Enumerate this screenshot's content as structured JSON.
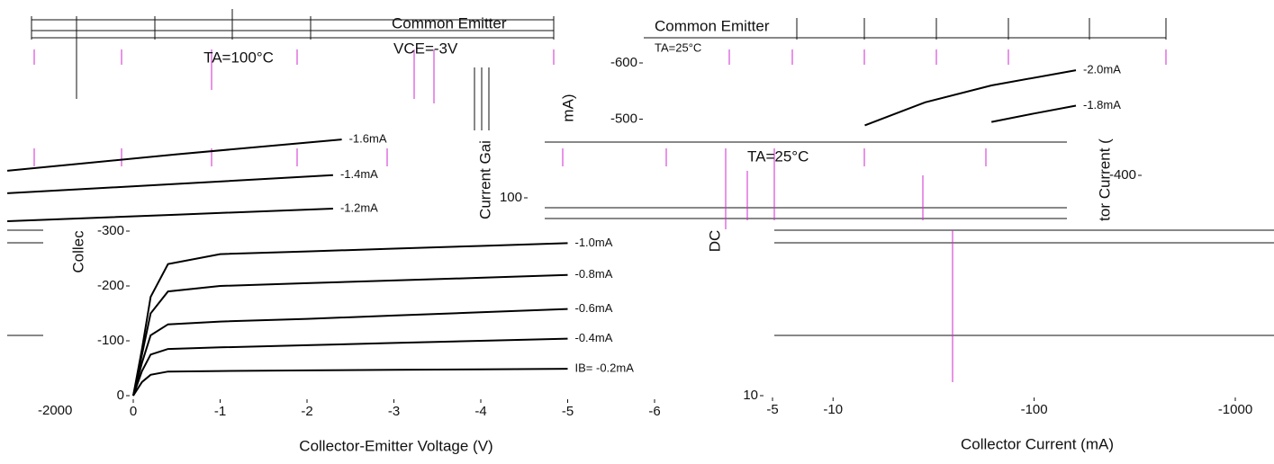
{
  "chart_data": [
    {
      "type": "line",
      "xlabel": "Collector-Emitter Voltage (V)",
      "ylabel": "Collec",
      "annotations": [
        "TA=100°C",
        "-2000"
      ],
      "xlim": [
        0,
        -6
      ],
      "ylim": [
        0,
        -300
      ],
      "xticks": [
        0,
        -1,
        -2,
        -3,
        -4,
        -5,
        -6
      ],
      "yticks": [
        0,
        -100,
        -200,
        -300
      ],
      "series": [
        {
          "name": "IB= -0.2mA",
          "color": "#000000",
          "x": [
            0,
            -0.1,
            -0.2,
            -0.4,
            -1,
            -2,
            -3,
            -4,
            -5
          ],
          "values": [
            0,
            -25,
            -38,
            -44,
            -45,
            -46,
            -47,
            -48,
            -49
          ]
        },
        {
          "name": "-0.4mA",
          "color": "#000000",
          "x": [
            0,
            -0.1,
            -0.2,
            -0.4,
            -1,
            -2,
            -3,
            -4,
            -5
          ],
          "values": [
            0,
            -45,
            -75,
            -85,
            -88,
            -92,
            -96,
            -100,
            -104
          ]
        },
        {
          "name": "-0.6mA",
          "color": "#000000",
          "x": [
            0,
            -0.1,
            -0.2,
            -0.4,
            -1,
            -2,
            -3,
            -4,
            -5
          ],
          "values": [
            0,
            -60,
            -110,
            -130,
            -135,
            -140,
            -146,
            -152,
            -158
          ]
        },
        {
          "name": "-0.8mA",
          "color": "#000000",
          "x": [
            0,
            -0.1,
            -0.2,
            -0.4,
            -1,
            -2,
            -3,
            -4,
            -5
          ],
          "values": [
            0,
            -75,
            -150,
            -190,
            -200,
            -205,
            -210,
            -215,
            -220
          ]
        },
        {
          "name": "-1.0mA",
          "color": "#000000",
          "x": [
            0,
            -0.1,
            -0.2,
            -0.4,
            -1,
            -2,
            -3,
            -4,
            -5
          ],
          "values": [
            0,
            -85,
            -180,
            -240,
            -258,
            -263,
            -268,
            -273,
            -278
          ]
        },
        {
          "name": "-1.2mA",
          "color": "#000000",
          "x": [
            1.45,
            -0.5,
            -2.3
          ],
          "values": [
            -318,
            -330,
            -341
          ]
        },
        {
          "name": "-1.4mA",
          "color": "#000000",
          "x": [
            1.45,
            -0.5,
            -2.3
          ],
          "values": [
            -369,
            -386,
            -402
          ]
        },
        {
          "name": "-1.6mA",
          "color": "#000000",
          "x": [
            1.45,
            -0.5,
            -2.4
          ],
          "values": [
            -410,
            -440,
            -467
          ]
        }
      ]
    },
    {
      "type": "line",
      "title": "Common Emitter",
      "annotations": [
        "TA=25°C"
      ],
      "ylabel": [
        "mA)",
        "tor Current ("
      ],
      "xlim": [
        0,
        -5
      ],
      "ylim": [
        -400,
        -600
      ],
      "yticks": [
        -600,
        -500,
        -400
      ],
      "series": [
        {
          "name": "-2.0mA",
          "color": "#000000",
          "x": [
            -1.5,
            -2.5,
            -3.6,
            -5
          ],
          "values": [
            -489,
            -530,
            -560,
            -587
          ]
        },
        {
          "name": "-1.8mA",
          "color": "#000000",
          "x": [
            -3.6,
            -4.3,
            -5
          ],
          "values": [
            -495,
            -510,
            -524
          ]
        }
      ]
    },
    {
      "type": "line",
      "title": "Common Emitter",
      "annotations": [
        "VCE=-3V",
        "TA=25°C"
      ],
      "xlabel": "Collector Current (mA)",
      "ylabel": [
        "Current Gai",
        "DC"
      ],
      "xlog": true,
      "ylog": true,
      "xlim": [
        -5,
        -1000
      ],
      "ylim": [
        10,
        100
      ],
      "xticks": [
        -5,
        -10,
        -100,
        -1000
      ],
      "yticks": [
        10,
        100
      ]
    }
  ]
}
